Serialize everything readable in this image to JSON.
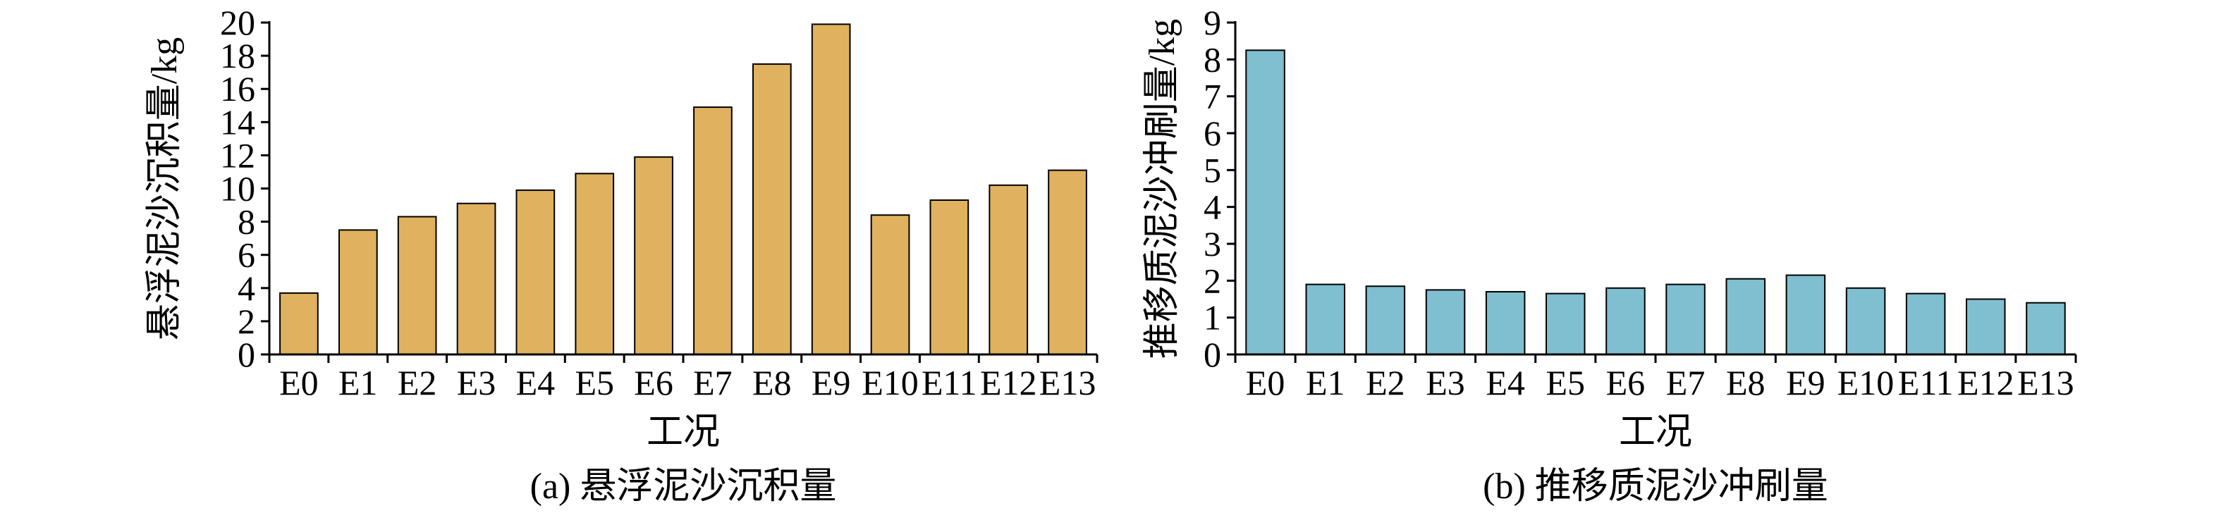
{
  "chart_data": [
    {
      "type": "bar",
      "caption": "(a) 悬浮泥沙沉积量",
      "xlabel": "工况",
      "ylabel": "悬浮泥沙沉积量/kg",
      "categories": [
        "E0",
        "E1",
        "E2",
        "E3",
        "E4",
        "E5",
        "E6",
        "E7",
        "E8",
        "E9",
        "E10",
        "E11",
        "E12",
        "E13"
      ],
      "values": [
        3.7,
        7.5,
        8.3,
        9.1,
        9.9,
        10.9,
        11.9,
        14.9,
        17.5,
        19.9,
        8.4,
        9.3,
        10.2,
        11.1
      ],
      "ylim": [
        0,
        20
      ],
      "yticks": [
        0,
        2,
        4,
        6,
        8,
        10,
        12,
        14,
        16,
        18,
        20
      ],
      "bar_color": "#e0b25f",
      "grid": false,
      "legend": "none"
    },
    {
      "type": "bar",
      "caption": "(b) 推移质泥沙冲刷量",
      "xlabel": "工况",
      "ylabel": "推移质泥沙冲刷量/kg",
      "categories": [
        "E0",
        "E1",
        "E2",
        "E3",
        "E4",
        "E5",
        "E6",
        "E7",
        "E8",
        "E9",
        "E10",
        "E11",
        "E12",
        "E13"
      ],
      "values": [
        8.25,
        1.9,
        1.85,
        1.75,
        1.7,
        1.65,
        1.8,
        1.9,
        2.05,
        2.15,
        1.8,
        1.65,
        1.5,
        1.4
      ],
      "ylim": [
        0,
        9
      ],
      "yticks": [
        0,
        1,
        2,
        3,
        4,
        5,
        6,
        7,
        8,
        9
      ],
      "bar_color": "#7fbfcf",
      "grid": false,
      "legend": "none"
    }
  ]
}
